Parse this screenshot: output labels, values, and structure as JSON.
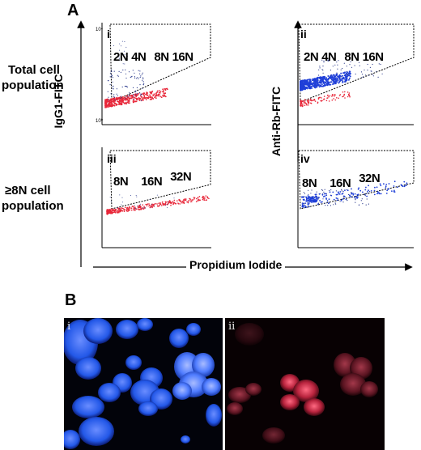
{
  "panel_a_letter": "A",
  "panel_b_letter": "B",
  "row_labels": {
    "total": [
      "Total cell",
      "population"
    ],
    "high": [
      "≥8N cell",
      "population"
    ]
  },
  "axis_labels": {
    "left_y": "IgG1-FITC",
    "right_y": "Anti-Rb-FITC",
    "x": "Propidium Iodide"
  },
  "plots": {
    "i": {
      "numeral": "i",
      "ploidy": [
        "2N",
        "4N",
        "8N",
        "16N"
      ]
    },
    "ii": {
      "numeral": "ii",
      "ploidy": [
        "2N",
        "4N",
        "8N",
        "16N"
      ]
    },
    "iii": {
      "numeral": "iii",
      "ploidy": [
        "8N",
        "16N",
        "32N"
      ]
    },
    "iv": {
      "numeral": "iv",
      "ploidy": [
        "8N",
        "16N",
        "32N"
      ]
    }
  },
  "photos": {
    "i": "i",
    "ii": "ii"
  },
  "colors": {
    "negative_events": "#e8283a",
    "positive_events": "#1f3fd8",
    "sparse_events": "#2b3a8c",
    "nuclei_blue": "#2f6cff",
    "nuclei_red": "#d0304a"
  }
}
